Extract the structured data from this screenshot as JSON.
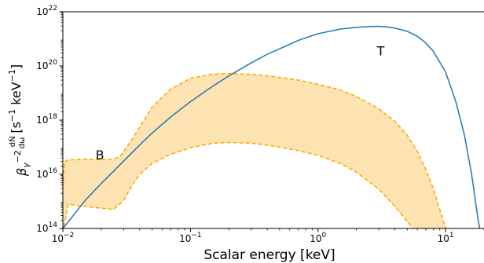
{
  "chart_data": {
    "type": "line",
    "x_scale": "log",
    "y_scale": "log",
    "xlim": [
      0.01,
      20
    ],
    "ylim": [
      100000000000000.0,
      1e+22
    ],
    "xlabel": "Scalar energy [keV]",
    "ylabel": {
      "beta": "β",
      "beta_sub": "γ",
      "beta_sup": "−2",
      "frac_num": "dṄ",
      "frac_den": "dω",
      "units_open": "[s",
      "units_sup1": "−1",
      "units_mid": " keV",
      "units_sup2": "−1",
      "units_close": "]"
    },
    "x_ticks": [
      {
        "value": 0.01,
        "base": "10",
        "exp": "−2"
      },
      {
        "value": 0.1,
        "base": "10",
        "exp": "−1"
      },
      {
        "value": 1,
        "base": "10",
        "exp": "0"
      },
      {
        "value": 10,
        "base": "10",
        "exp": "1"
      }
    ],
    "y_ticks": [
      {
        "value": 100000000000000.0,
        "base": "10",
        "exp": "14"
      },
      {
        "value": 1e+16,
        "base": "10",
        "exp": "16"
      },
      {
        "value": 1e+18,
        "base": "10",
        "exp": "18"
      },
      {
        "value": 1e+20,
        "base": "10",
        "exp": "20"
      },
      {
        "value": 1e+22,
        "base": "10",
        "exp": "22"
      }
    ],
    "annotations": [
      {
        "text": "T",
        "x": 3.1,
        "y": 2.5e+20
      },
      {
        "text": "B",
        "x": 0.0195,
        "y": 3.5e+16
      }
    ],
    "series": [
      {
        "color": "#1f77b4",
        "x": [
          0.01,
          0.012,
          0.015,
          0.02,
          0.025,
          0.03,
          0.04,
          0.05,
          0.07,
          0.1,
          0.15,
          0.2,
          0.3,
          0.4,
          0.5,
          0.7,
          1.0,
          1.5,
          2.0,
          2.5,
          3.0,
          3.5,
          4.0,
          5.0,
          6.0,
          7.0,
          8.0,
          10.0,
          12.0,
          14.0,
          16.0,
          18.0,
          20.0
        ],
        "y": [
          100000000000000.0,
          290000000000000.0,
          1100000000000000.0,
          4600000000000000.0,
          1.3e+16,
          3.1e+16,
          1.2e+17,
          3.3e+17,
          1.3e+18,
          4.8e+18,
          1.8e+19,
          4.3e+19,
          1.3e+20,
          2.7e+20,
          4.3e+20,
          8.8e+20,
          1.55e+21,
          2.3e+21,
          2.65e+21,
          2.85e+21,
          2.9e+21,
          2.75e+21,
          2.5e+21,
          1.9e+21,
          1.25e+21,
          7e+20,
          3.5e+20,
          6e+19,
          5e+18,
          3e+17,
          1e+16,
          200000000000000.0,
          15000000000000.0
        ]
      }
    ],
    "band": {
      "color": "#ffa500",
      "fill": "#fde2b2",
      "upper": {
        "x": [
          0.01,
          0.0103,
          0.011,
          0.015,
          0.02,
          0.025,
          0.028,
          0.03,
          0.035,
          0.04,
          0.05,
          0.07,
          0.1,
          0.15,
          0.2,
          0.3,
          0.4,
          0.5,
          0.7,
          1.0,
          1.5,
          2.0,
          3.0,
          4.0,
          5.0,
          6.0,
          7.0,
          8.0,
          10.0,
          11.0
        ],
        "y": [
          3500000000000000.0,
          2.9e+16,
          3.4e+16,
          3.6e+16,
          3.5e+16,
          3.6e+16,
          4.5e+16,
          7e+16,
          2e+17,
          5.5e+17,
          3e+18,
          1.4e+19,
          3.5e+19,
          5e+19,
          5.3e+19,
          4.9e+19,
          4.3e+19,
          3.8e+19,
          3e+19,
          2.1e+19,
          1.3e+19,
          7.5e+18,
          2.6e+18,
          9e+17,
          2.8e+17,
          7e+16,
          1.5e+16,
          3000000000000000.0,
          100000000000000.0,
          10000000000000.0
        ]
      },
      "lower": {
        "x": [
          0.01,
          0.011,
          0.015,
          0.02,
          0.025,
          0.03,
          0.035,
          0.04,
          0.05,
          0.07,
          0.1,
          0.15,
          0.2,
          0.3,
          0.4,
          0.5,
          0.7,
          1.0,
          1.5,
          2.0,
          3.0,
          4.0,
          5.0,
          5.5,
          6.0
        ],
        "y": [
          70000000000000.0,
          780000000000000.0,
          650000000000000.0,
          560000000000000.0,
          500000000000000.0,
          1100000000000000.0,
          4000000000000000.0,
          1e+16,
          2.5e+16,
          5.5e+16,
          9.5e+16,
          1.4e+17,
          1.5e+17,
          1.4e+17,
          1.2e+17,
          1e+17,
          7.5e+16,
          5e+16,
          2.5e+16,
          1.2e+16,
          2800000000000000.0,
          650000000000000.0,
          180000000000000.0,
          100000000000000.0,
          50000000000000.0
        ]
      }
    }
  }
}
